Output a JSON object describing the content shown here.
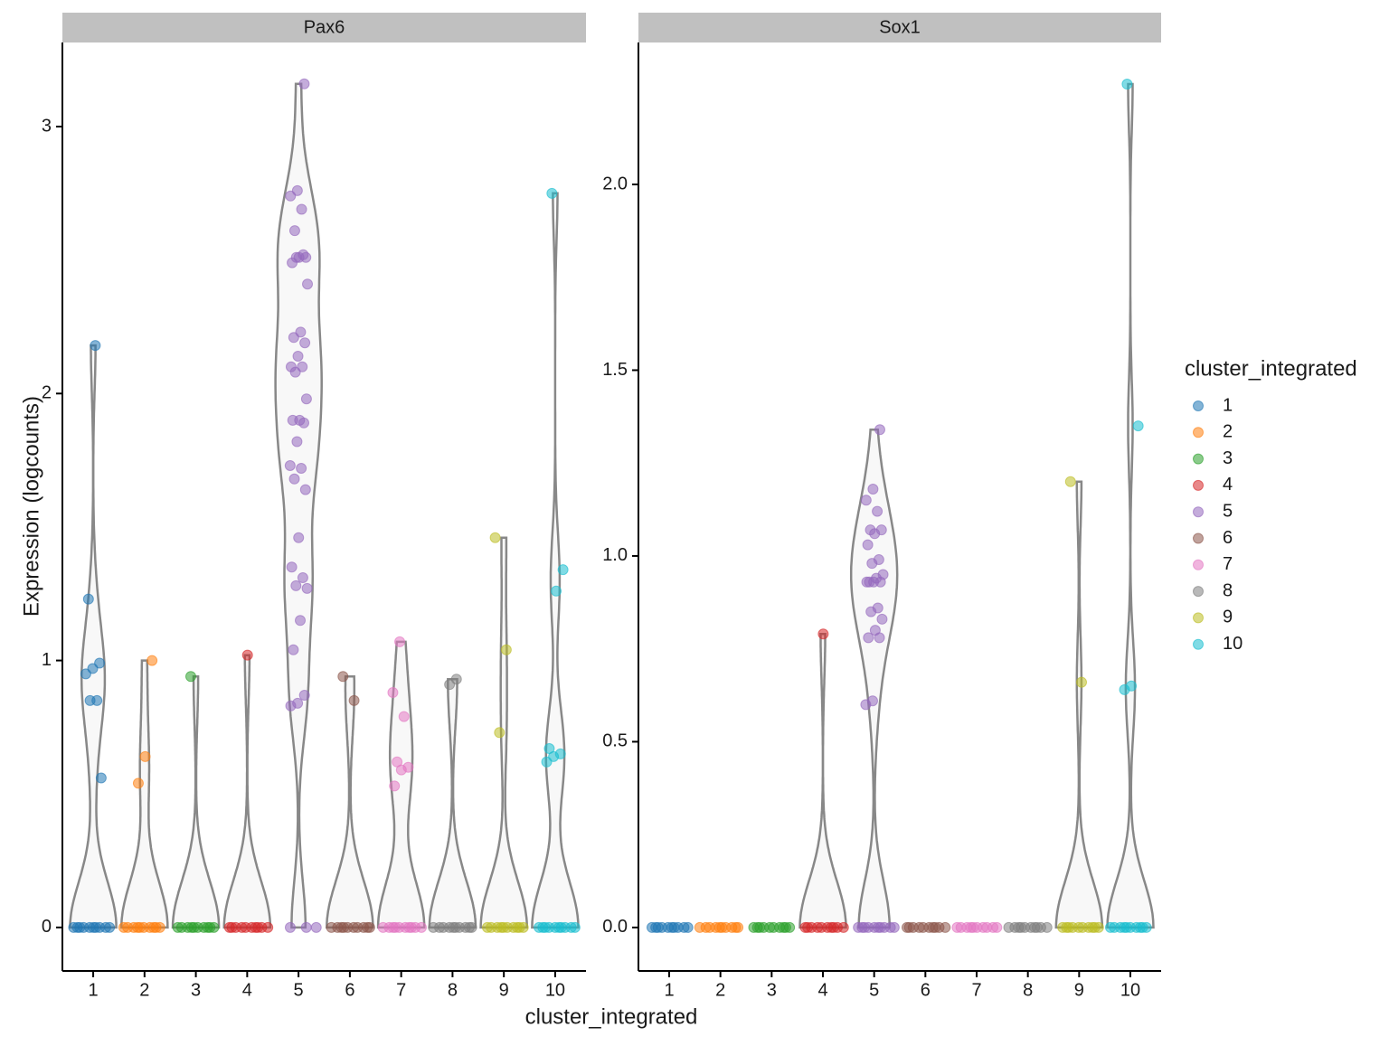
{
  "chart_data": [
    {
      "type": "violin",
      "title": "Pax6",
      "categories": [
        "1",
        "2",
        "3",
        "4",
        "5",
        "6",
        "7",
        "8",
        "9",
        "10"
      ],
      "ylim": [
        -0.163,
        3.315
      ],
      "yticks": [
        0,
        1,
        2,
        3
      ],
      "values": [
        [
          2.18,
          1.23,
          0.99,
          0.97,
          0.95,
          0.85,
          0.85,
          0.56,
          0,
          0,
          0,
          0,
          0,
          0,
          0,
          0,
          0,
          0
        ],
        [
          1.0,
          0.64,
          0.54,
          0,
          0,
          0,
          0,
          0,
          0,
          0,
          0,
          0,
          0
        ],
        [
          0.94,
          0,
          0,
          0,
          0,
          0,
          0,
          0,
          0,
          0,
          0
        ],
        [
          1.02,
          0,
          0,
          0,
          0,
          0,
          0,
          0,
          0,
          0,
          0
        ],
        [
          3.16,
          2.76,
          2.74,
          2.69,
          2.61,
          2.51,
          2.51,
          2.49,
          2.52,
          2.51,
          2.41,
          2.23,
          2.21,
          2.19,
          2.14,
          2.1,
          2.1,
          2.08,
          1.98,
          1.9,
          1.9,
          1.89,
          1.82,
          1.73,
          1.72,
          1.68,
          1.64,
          1.46,
          1.35,
          1.31,
          1.28,
          1.27,
          1.15,
          1.04,
          0.87,
          0.84,
          0.83,
          0,
          0,
          0
        ],
        [
          0.94,
          0.85,
          0,
          0,
          0,
          0,
          0,
          0,
          0,
          0,
          0,
          0
        ],
        [
          1.07,
          0.88,
          0.79,
          0.62,
          0.6,
          0.59,
          0.53,
          0,
          0,
          0,
          0,
          0,
          0,
          0,
          0,
          0,
          0
        ],
        [
          0.93,
          0.91,
          0,
          0,
          0,
          0,
          0,
          0,
          0,
          0,
          0,
          0
        ],
        [
          1.46,
          1.04,
          0.73,
          0,
          0,
          0,
          0,
          0,
          0,
          0,
          0,
          0,
          0
        ],
        [
          2.75,
          1.34,
          1.26,
          0.67,
          0.65,
          0.64,
          0.62,
          0,
          0,
          0,
          0,
          0,
          0,
          0,
          0,
          0,
          0
        ]
      ]
    },
    {
      "type": "violin",
      "title": "Sox1",
      "categories": [
        "1",
        "2",
        "3",
        "4",
        "5",
        "6",
        "7",
        "8",
        "9",
        "10"
      ],
      "ylim": [
        -0.117,
        2.382
      ],
      "yticks": [
        {
          "value": 0,
          "label": "0.0"
        },
        0.5,
        {
          "value": 1,
          "label": "1.0"
        },
        1.5,
        {
          "value": 2,
          "label": "2.0"
        }
      ],
      "values": [
        [
          0,
          0,
          0,
          0,
          0,
          0,
          0,
          0,
          0,
          0
        ],
        [
          0,
          0,
          0,
          0,
          0,
          0,
          0,
          0,
          0,
          0
        ],
        [
          0,
          0,
          0,
          0,
          0,
          0,
          0,
          0,
          0,
          0
        ],
        [
          0.79,
          0,
          0,
          0,
          0,
          0,
          0,
          0,
          0,
          0,
          0
        ],
        [
          1.34,
          1.18,
          1.15,
          1.12,
          1.07,
          1.07,
          1.06,
          1.03,
          0.99,
          0.98,
          0.95,
          0.94,
          0.93,
          0.93,
          0.93,
          0.93,
          0.86,
          0.85,
          0.83,
          0.8,
          0.78,
          0.78,
          0.61,
          0.6,
          0,
          0,
          0,
          0,
          0,
          0,
          0,
          0,
          0,
          0
        ],
        [
          0,
          0,
          0,
          0,
          0,
          0,
          0,
          0,
          0,
          0
        ],
        [
          0,
          0,
          0,
          0,
          0,
          0,
          0,
          0,
          0,
          0
        ],
        [
          0,
          0,
          0,
          0,
          0,
          0,
          0,
          0,
          0,
          0
        ],
        [
          1.2,
          0.66,
          0,
          0,
          0,
          0,
          0,
          0,
          0,
          0,
          0,
          0
        ],
        [
          2.27,
          1.35,
          0.65,
          0.64,
          0,
          0,
          0,
          0,
          0,
          0,
          0,
          0,
          0,
          0
        ]
      ]
    }
  ],
  "x_label": "cluster_integrated",
  "y_label": "Expression (logcounts)",
  "legend": {
    "title": "cluster_integrated",
    "position": "right",
    "entries": [
      {
        "name": "1",
        "color": "#1f77b4"
      },
      {
        "name": "2",
        "color": "#ff7f0e"
      },
      {
        "name": "3",
        "color": "#2ca02c"
      },
      {
        "name": "4",
        "color": "#d62728"
      },
      {
        "name": "5",
        "color": "#9467bd"
      },
      {
        "name": "6",
        "color": "#8c564b"
      },
      {
        "name": "7",
        "color": "#e377c2"
      },
      {
        "name": "8",
        "color": "#7f7f7f"
      },
      {
        "name": "9",
        "color": "#bcbd22"
      },
      {
        "name": "10",
        "color": "#17becf"
      }
    ]
  }
}
